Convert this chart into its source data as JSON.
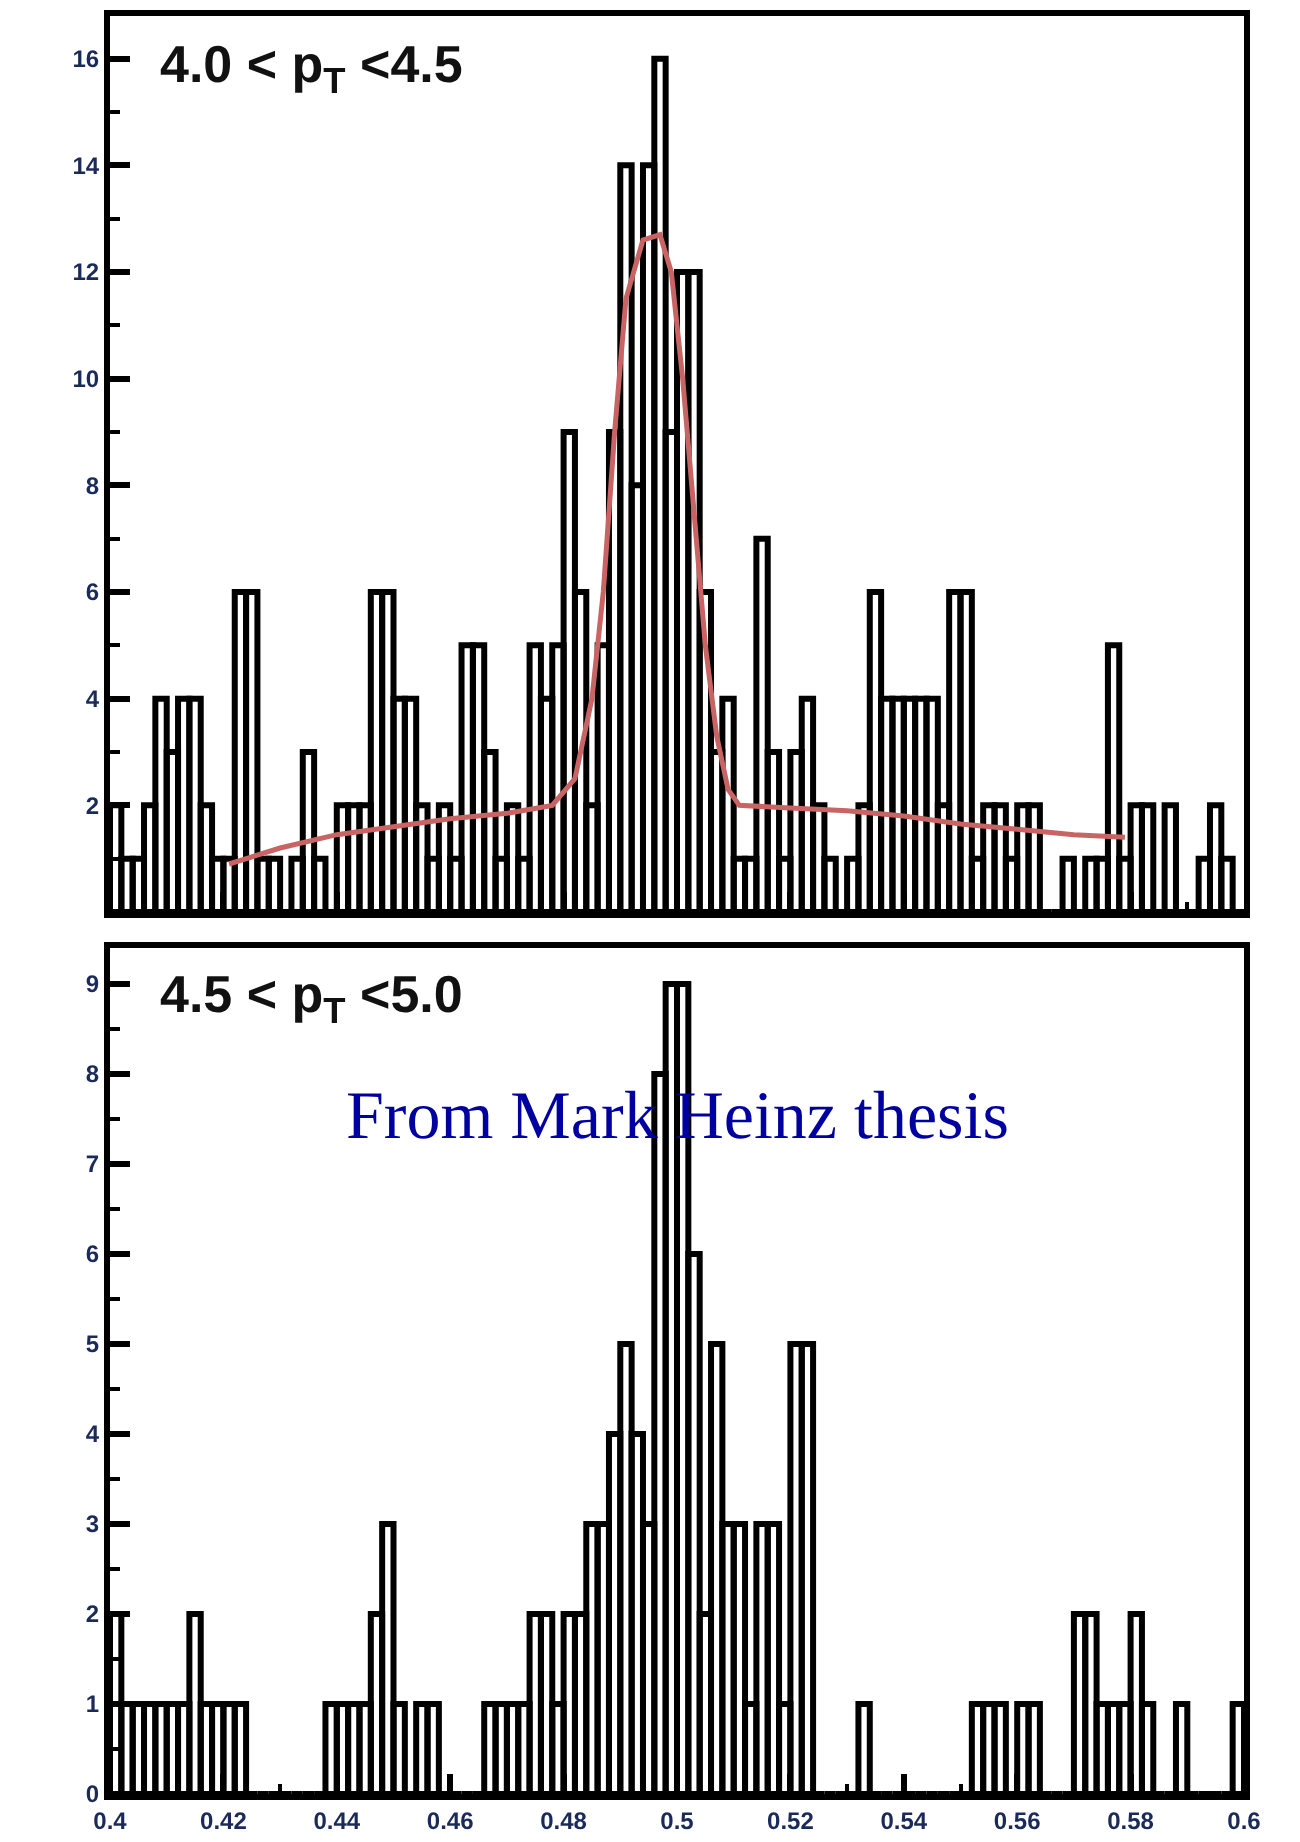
{
  "chart_data": [
    {
      "type": "histogram",
      "title": "4.0 < p$_{T}$ <4.5",
      "tick_labels": "y",
      "bins": [
        0.4,
        0.402,
        0.404,
        0.406,
        0.408,
        0.41,
        0.412,
        0.414,
        0.416,
        0.418,
        0.42,
        0.422,
        0.424,
        0.426,
        0.428,
        0.43,
        0.432,
        0.434,
        0.436,
        0.438,
        0.44,
        0.442,
        0.444,
        0.446,
        0.448,
        0.45,
        0.452,
        0.454,
        0.456,
        0.458,
        0.46,
        0.462,
        0.464,
        0.466,
        0.468,
        0.47,
        0.472,
        0.474,
        0.476,
        0.478,
        0.48,
        0.482,
        0.484,
        0.486,
        0.488,
        0.49,
        0.492,
        0.494,
        0.496,
        0.498,
        0.5,
        0.502,
        0.504,
        0.506,
        0.508,
        0.51,
        0.512,
        0.514,
        0.516,
        0.518,
        0.52,
        0.522,
        0.524,
        0.526,
        0.528,
        0.53,
        0.532,
        0.534,
        0.536,
        0.538,
        0.54,
        0.542,
        0.544,
        0.546,
        0.548,
        0.55,
        0.552,
        0.554,
        0.556,
        0.558,
        0.56,
        0.562,
        0.564,
        0.566,
        0.568,
        0.57,
        0.572,
        0.574,
        0.576,
        0.578,
        0.58,
        0.582,
        0.584,
        0.586,
        0.588,
        0.59,
        0.592,
        0.594,
        0.596,
        0.598,
        0.6
      ],
      "series": [
        {
          "color": "#000000",
          "values": [
            2,
            1,
            1,
            2,
            4,
            3,
            4,
            4,
            2,
            1,
            1,
            6,
            6,
            1,
            1,
            0,
            1,
            3,
            1,
            0,
            2,
            2,
            2,
            6,
            6,
            4,
            4,
            2,
            1,
            2,
            1,
            5,
            5,
            3,
            1,
            2,
            1,
            5,
            4,
            5,
            9,
            6,
            2,
            5,
            9,
            14,
            8,
            14,
            16,
            9,
            12,
            12,
            6,
            3,
            4,
            1,
            1,
            7,
            3,
            1,
            3,
            4,
            2,
            1,
            0,
            1,
            2,
            6,
            4,
            4,
            4,
            4,
            4,
            2,
            6,
            6,
            1,
            2,
            2,
            1,
            2,
            2,
            0,
            0,
            1,
            0,
            1,
            1,
            5,
            1,
            2,
            2,
            0,
            2,
            0,
            0,
            1,
            2,
            1,
            0
          ]
        },
        {
          "type": "line",
          "color": "#c86464",
          "x": [
            0.421,
            0.43,
            0.44,
            0.45,
            0.46,
            0.47,
            0.478,
            0.482,
            0.485,
            0.487,
            0.489,
            0.491,
            0.494,
            0.497,
            0.499,
            0.501,
            0.503,
            0.505,
            0.507,
            0.509,
            0.511,
            0.52,
            0.53,
            0.54,
            0.55,
            0.56,
            0.57,
            0.579
          ],
          "values": [
            0.9,
            1.2,
            1.45,
            1.6,
            1.75,
            1.85,
            2.0,
            2.5,
            4,
            6,
            9,
            11.5,
            12.6,
            12.7,
            12,
            10,
            7.5,
            5,
            3.3,
            2.3,
            2.0,
            1.95,
            1.9,
            1.8,
            1.65,
            1.55,
            1.45,
            1.4
          ]
        }
      ],
      "xlim": [
        0.4,
        0.6
      ],
      "xticks": [
        0.4,
        0.42,
        0.44,
        0.46,
        0.48,
        0.5,
        0.52,
        0.54,
        0.56,
        0.58,
        0.6
      ],
      "ylim": [
        0,
        16.8
      ],
      "yticks": [
        2,
        4,
        6,
        8,
        10,
        12,
        14,
        16
      ]
    },
    {
      "type": "histogram",
      "title": "4.5 < p$_{T}$ <5.0",
      "annotations": [
        "From Mark Heinz thesis"
      ],
      "bins": [
        0.4,
        0.402,
        0.404,
        0.406,
        0.408,
        0.41,
        0.412,
        0.414,
        0.416,
        0.418,
        0.42,
        0.422,
        0.424,
        0.426,
        0.428,
        0.43,
        0.432,
        0.434,
        0.436,
        0.438,
        0.44,
        0.442,
        0.444,
        0.446,
        0.448,
        0.45,
        0.452,
        0.454,
        0.456,
        0.458,
        0.46,
        0.462,
        0.464,
        0.466,
        0.468,
        0.47,
        0.472,
        0.474,
        0.476,
        0.478,
        0.48,
        0.482,
        0.484,
        0.486,
        0.488,
        0.49,
        0.492,
        0.494,
        0.496,
        0.498,
        0.5,
        0.502,
        0.504,
        0.506,
        0.508,
        0.51,
        0.512,
        0.514,
        0.516,
        0.518,
        0.52,
        0.522,
        0.524,
        0.526,
        0.528,
        0.53,
        0.532,
        0.534,
        0.536,
        0.538,
        0.54,
        0.542,
        0.544,
        0.546,
        0.548,
        0.55,
        0.552,
        0.554,
        0.556,
        0.558,
        0.56,
        0.562,
        0.564,
        0.566,
        0.568,
        0.57,
        0.572,
        0.574,
        0.576,
        0.578,
        0.58,
        0.582,
        0.584,
        0.586,
        0.588,
        0.59,
        0.592,
        0.594,
        0.596,
        0.598,
        0.6
      ],
      "series": [
        {
          "color": "#000000",
          "values": [
            2,
            1,
            1,
            1,
            1,
            1,
            1,
            2,
            1,
            1,
            1,
            1,
            0,
            0,
            0,
            0,
            0,
            0,
            0,
            1,
            1,
            1,
            1,
            2,
            3,
            1,
            0,
            1,
            1,
            0,
            0,
            0,
            0,
            1,
            1,
            1,
            1,
            2,
            2,
            1,
            2,
            2,
            3,
            3,
            4,
            5,
            4,
            3,
            8,
            9,
            9,
            6,
            2,
            5,
            3,
            3,
            1,
            3,
            3,
            1,
            5,
            5,
            0,
            0,
            0,
            0,
            1,
            0,
            0,
            0,
            0,
            0,
            0,
            0,
            0,
            0,
            1,
            1,
            1,
            0,
            1,
            1,
            0,
            0,
            0,
            2,
            2,
            1,
            1,
            1,
            2,
            1,
            0,
            0,
            1,
            0,
            0,
            0,
            0,
            1
          ]
        }
      ],
      "xlim": [
        0.4,
        0.6
      ],
      "xticks": [
        0.4,
        0.42,
        0.44,
        0.46,
        0.48,
        0.5,
        0.52,
        0.54,
        0.56,
        0.58,
        0.6
      ],
      "ylim": [
        0,
        9.4
      ],
      "yticks": [
        0,
        1,
        2,
        3,
        4,
        5,
        6,
        7,
        8,
        9
      ]
    }
  ]
}
